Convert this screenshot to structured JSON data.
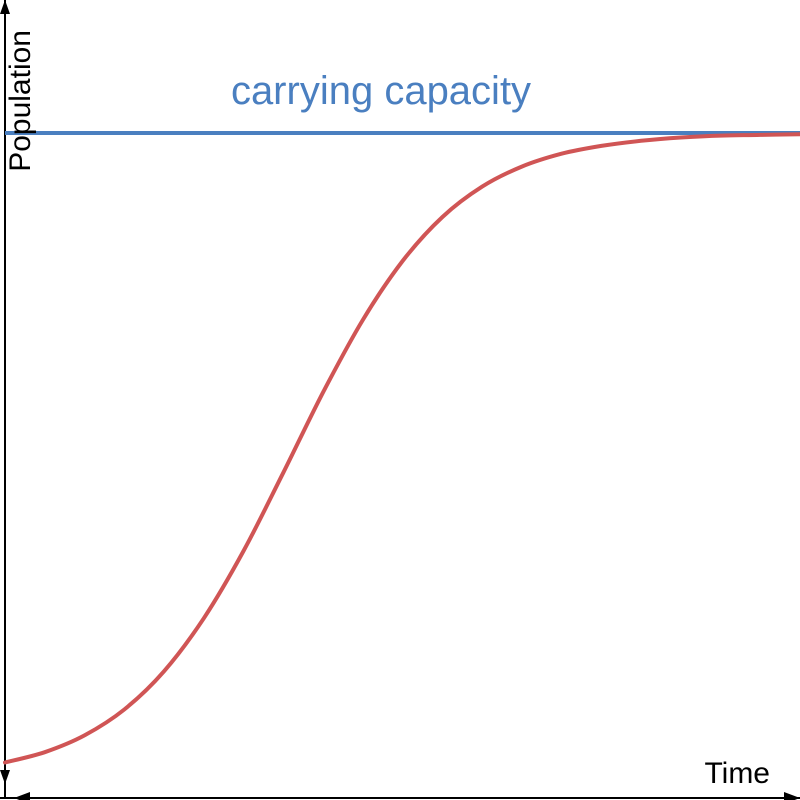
{
  "chart_data": {
    "type": "line",
    "title": "",
    "xlabel": "Time",
    "ylabel": "Population",
    "xlim": [
      0,
      10
    ],
    "ylim": [
      0,
      1
    ],
    "grid": false,
    "reference_lines": [
      {
        "kind": "horizontal",
        "y": 1.0,
        "label": "carrying capacity",
        "color": "#4a7fc0"
      }
    ],
    "series": [
      {
        "color": "#d05555",
        "x": [
          0,
          0.5,
          1,
          1.5,
          2,
          2.5,
          3,
          3.5,
          4,
          4.5,
          5,
          5.5,
          6,
          6.5,
          7,
          7.5,
          8,
          8.5,
          9,
          9.5,
          10
        ],
        "y": [
          0.027,
          0.043,
          0.069,
          0.109,
          0.168,
          0.25,
          0.354,
          0.475,
          0.599,
          0.711,
          0.802,
          0.87,
          0.917,
          0.948,
          0.968,
          0.98,
          0.988,
          0.993,
          0.996,
          0.997,
          0.998
        ]
      }
    ]
  }
}
